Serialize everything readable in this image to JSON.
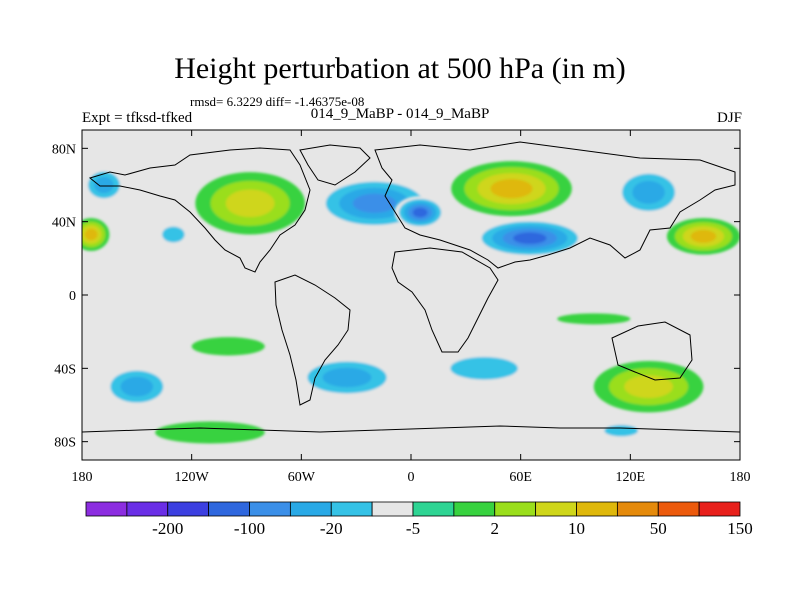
{
  "title": "Height perturbation at 500 hPa (in m)",
  "stats_line": "rmsd= 6.3229 diff= -1.46375e-08",
  "expt_label": "Expt = tfksd-tfked",
  "subtitle": "014_9_MaBP - 014_9_MaBP",
  "season": "DJF",
  "map": {
    "projection": "cylindrical-equidistant",
    "lon_range": [
      -180,
      180
    ],
    "lat_range": [
      -90,
      90
    ],
    "y_ticks": [
      {
        "lat": 80,
        "label": "80N"
      },
      {
        "lat": 40,
        "label": "40N"
      },
      {
        "lat": 0,
        "label": "0"
      },
      {
        "lat": -40,
        "label": "40S"
      },
      {
        "lat": -80,
        "label": "80S"
      }
    ],
    "x_ticks": [
      {
        "lon": -180,
        "label": "180"
      },
      {
        "lon": -120,
        "label": "120W"
      },
      {
        "lon": -60,
        "label": "60W"
      },
      {
        "lon": 0,
        "label": "0"
      },
      {
        "lon": 60,
        "label": "60E"
      },
      {
        "lon": 120,
        "label": "120E"
      },
      {
        "lon": 180,
        "label": "180"
      }
    ],
    "background_color": "#e6e6e6",
    "anomaly_features": [
      {
        "lon": -168,
        "lat": 60,
        "rx": 12,
        "ry": 10,
        "value": -12
      },
      {
        "lon": -175,
        "lat": 33,
        "rx": 10,
        "ry": 9,
        "value": 25
      },
      {
        "lon": -130,
        "lat": 33,
        "rx": 10,
        "ry": 7,
        "value": -8
      },
      {
        "lon": -88,
        "lat": 50,
        "rx": 30,
        "ry": 17,
        "value": 12
      },
      {
        "lon": -20,
        "lat": 50,
        "rx": 34,
        "ry": 15,
        "value": -40
      },
      {
        "lon": 5,
        "lat": 45,
        "rx": 14,
        "ry": 9,
        "value": -60
      },
      {
        "lon": 55,
        "lat": 58,
        "rx": 33,
        "ry": 15,
        "value": 22
      },
      {
        "lon": 65,
        "lat": 31,
        "rx": 32,
        "ry": 11,
        "value": -60
      },
      {
        "lon": 130,
        "lat": 56,
        "rx": 20,
        "ry": 14,
        "value": -12
      },
      {
        "lon": 160,
        "lat": 32,
        "rx": 20,
        "ry": 10,
        "value": 20
      },
      {
        "lon": 100,
        "lat": -13,
        "rx": 20,
        "ry": 3,
        "value": 3
      },
      {
        "lon": 30,
        "lat": -14,
        "rx": 14,
        "ry": 4,
        "value": -3
      },
      {
        "lon": -100,
        "lat": -28,
        "rx": 20,
        "ry": 5,
        "value": 4
      },
      {
        "lon": -150,
        "lat": -50,
        "rx": 20,
        "ry": 12,
        "value": -18
      },
      {
        "lon": -90,
        "lat": -45,
        "rx": 12,
        "ry": 8,
        "value": -5
      },
      {
        "lon": -35,
        "lat": -45,
        "rx": 30,
        "ry": 12,
        "value": -16
      },
      {
        "lon": 40,
        "lat": -40,
        "rx": 30,
        "ry": 10,
        "value": -10
      },
      {
        "lon": 130,
        "lat": -50,
        "rx": 30,
        "ry": 14,
        "value": 15
      },
      {
        "lon": 100,
        "lat": -30,
        "rx": 15,
        "ry": 5,
        "value": -3
      },
      {
        "lon": -110,
        "lat": -75,
        "rx": 30,
        "ry": 6,
        "value": 4
      },
      {
        "lon": -30,
        "lat": -75,
        "rx": 25,
        "ry": 6,
        "value": -5
      },
      {
        "lon": 115,
        "lat": -74,
        "rx": 15,
        "ry": 5,
        "value": -7
      }
    ]
  },
  "colorbar": {
    "colors": [
      "#8c2de0",
      "#6a2ee6",
      "#3c3fe0",
      "#2f67de",
      "#3b8fe8",
      "#29a9e6",
      "#35c2e6",
      "#e6e6e6",
      "#2ed493",
      "#38d23f",
      "#9ade1b",
      "#cfd61a",
      "#dfb80b",
      "#e58a0b",
      "#ec5a0c",
      "#e8201b"
    ],
    "labels": [
      {
        "after_bin": 1,
        "text": "-200"
      },
      {
        "after_bin": 3,
        "text": "-100"
      },
      {
        "after_bin": 5,
        "text": "-20"
      },
      {
        "after_bin": 7,
        "text": "-5"
      },
      {
        "after_bin": 9,
        "text": "2"
      },
      {
        "after_bin": 11,
        "text": "10"
      },
      {
        "after_bin": 13,
        "text": "50"
      },
      {
        "after_bin": 15,
        "text": "150"
      }
    ]
  }
}
